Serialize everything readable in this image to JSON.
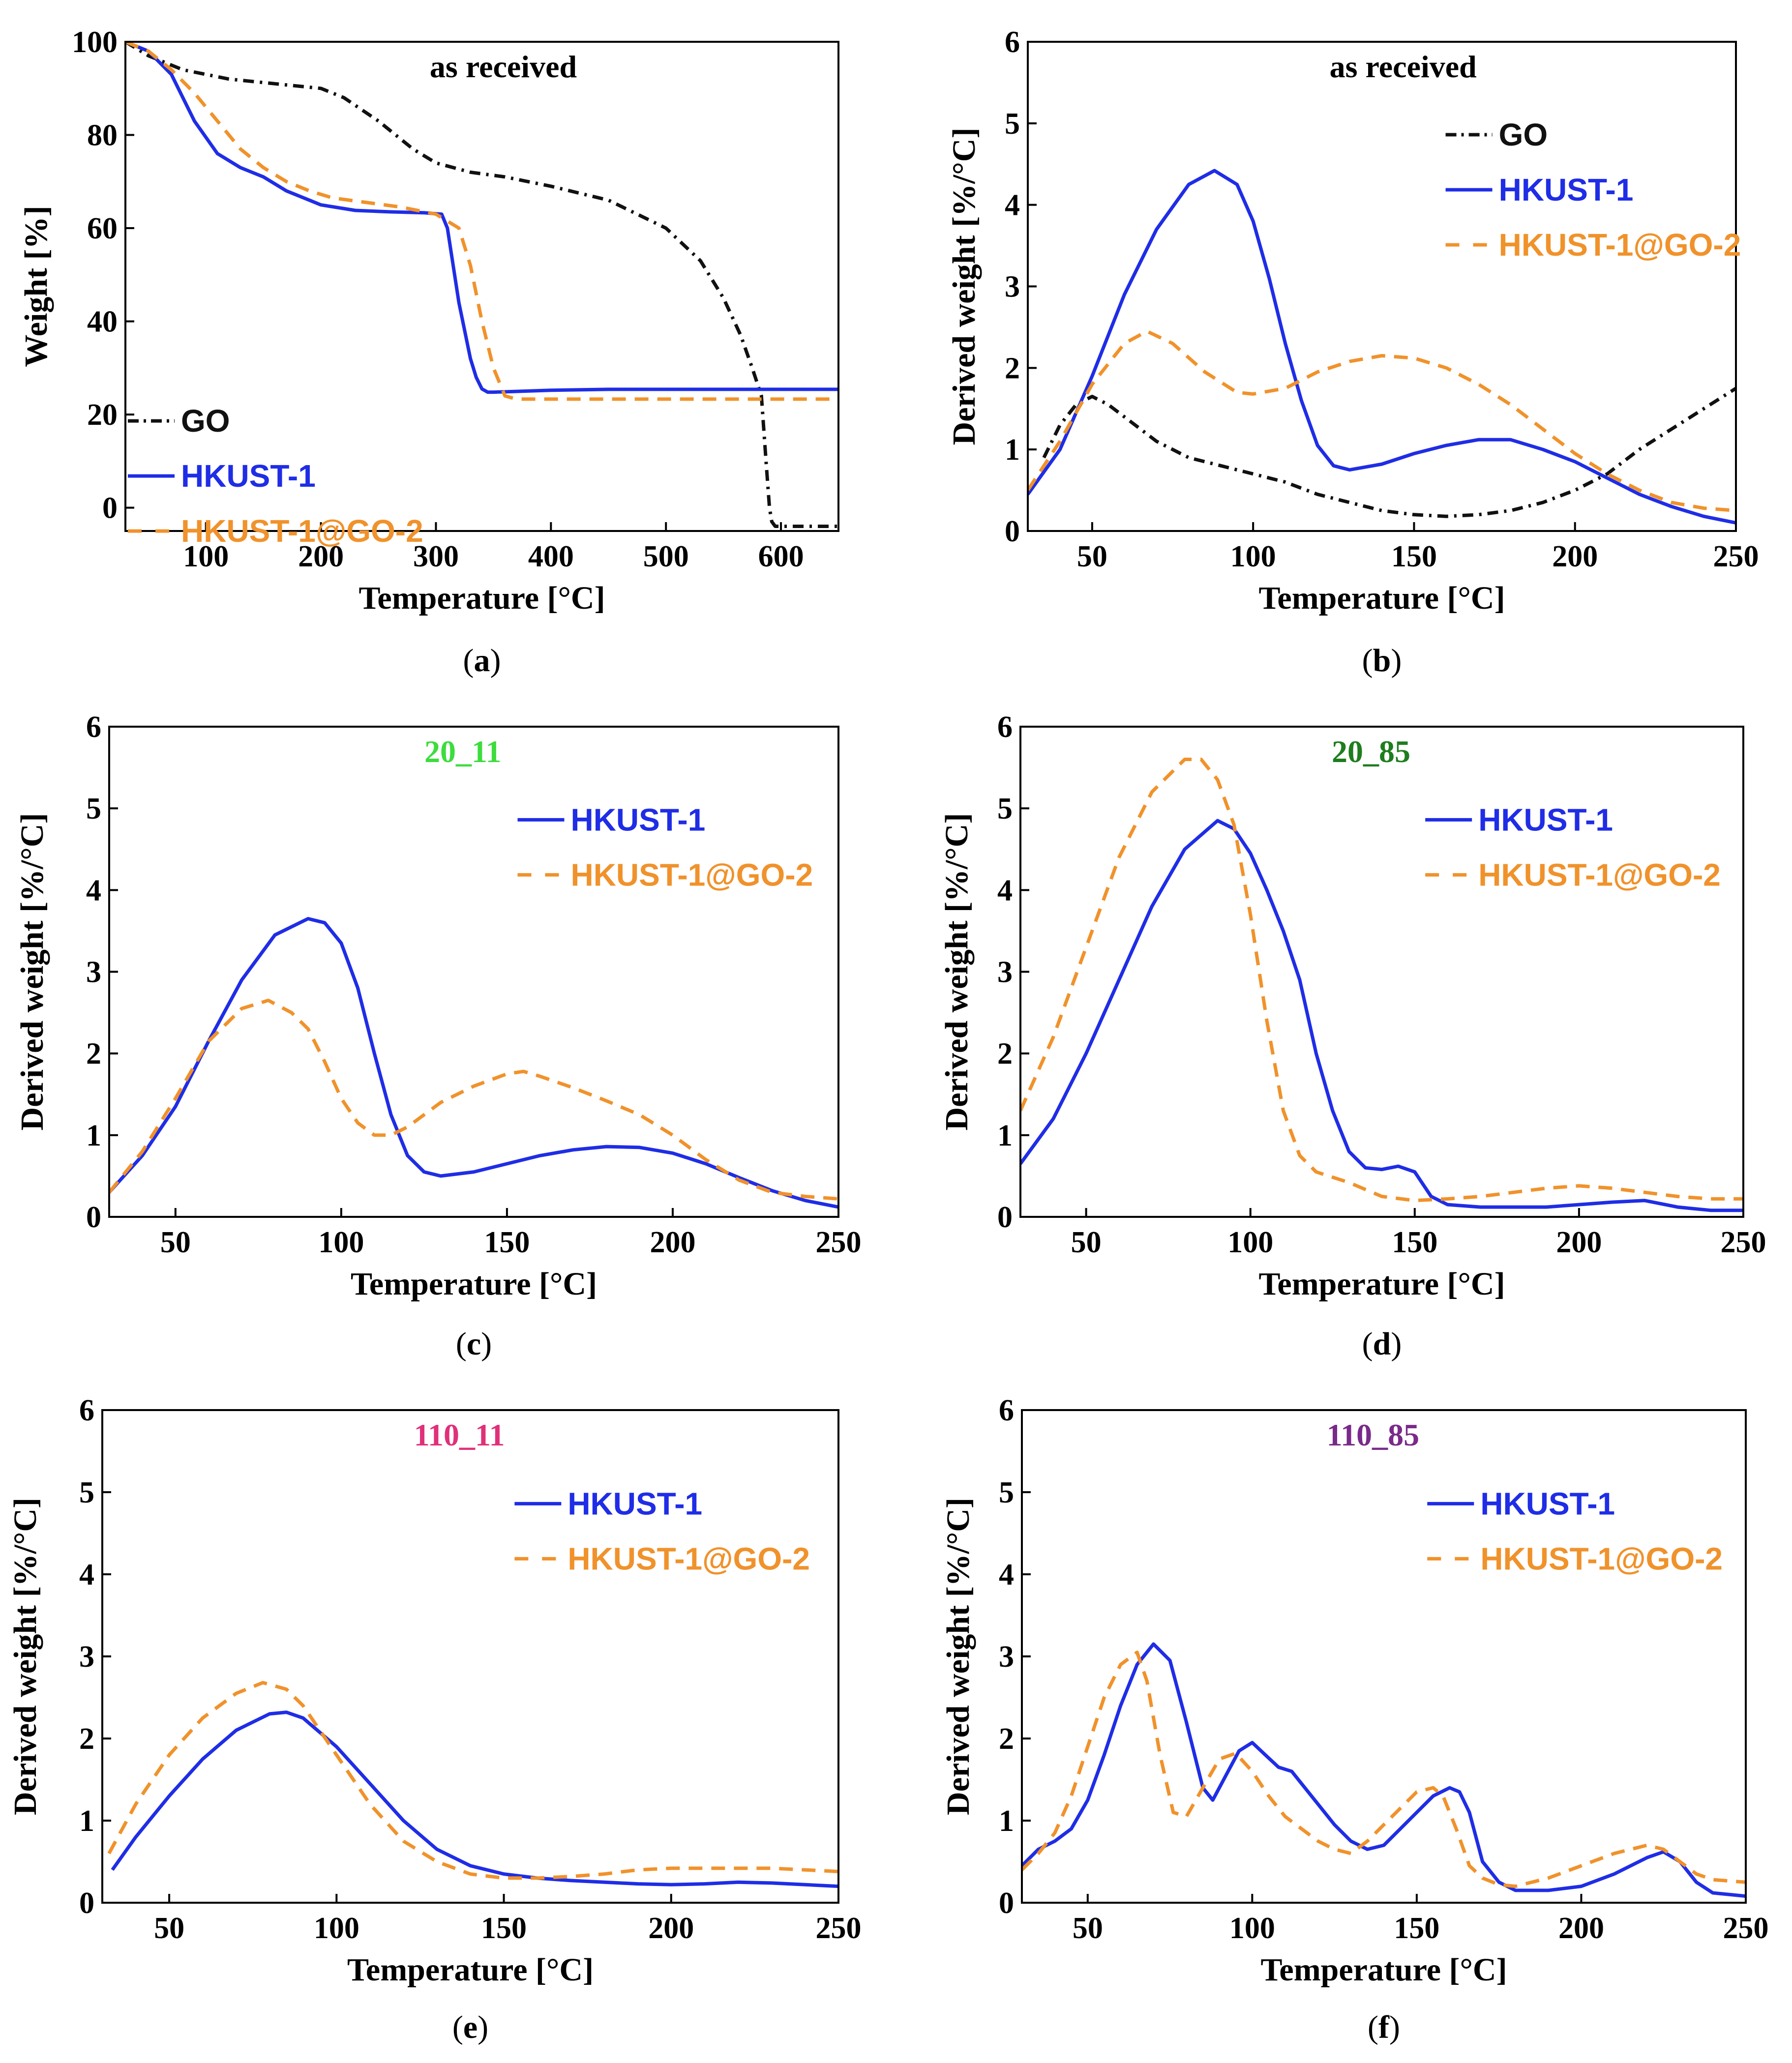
{
  "colors": {
    "GO": "#111111",
    "HKUST-1": "#1f2de6",
    "HKUST-1@GO-2": "#f0922b",
    "axis": "#000000"
  },
  "chart_data": [
    {
      "id": "a",
      "panel_label": "a",
      "type": "line",
      "title": "as received",
      "title_color": "#000000",
      "xlabel": "Temperature [°C]",
      "ylabel": "Weight [%]",
      "xlim": [
        30,
        650
      ],
      "ylim": [
        -5,
        100
      ],
      "xticks": [
        100,
        200,
        300,
        400,
        500,
        600
      ],
      "yticks": [
        0,
        20,
        40,
        60,
        80,
        100
      ],
      "legend_position": "left",
      "series": [
        {
          "name": "GO",
          "style": "dashdot",
          "color": "#111111",
          "x": [
            30,
            50,
            80,
            120,
            160,
            200,
            220,
            250,
            280,
            300,
            330,
            360,
            400,
            450,
            500,
            530,
            550,
            565,
            575,
            583,
            587,
            590,
            592,
            595,
            600,
            620,
            650
          ],
          "y": [
            100,
            97,
            94,
            92,
            91,
            90,
            88,
            83,
            77,
            74,
            72,
            71,
            69,
            66,
            60,
            53,
            45,
            37,
            30,
            24,
            10,
            0,
            -3,
            -4,
            -4,
            -4,
            -4
          ]
        },
        {
          "name": "HKUST-1",
          "style": "solid",
          "color": "#1f2de6",
          "x": [
            30,
            50,
            70,
            90,
            110,
            130,
            150,
            170,
            200,
            230,
            260,
            290,
            305,
            310,
            315,
            320,
            325,
            330,
            335,
            340,
            345,
            350,
            400,
            450,
            500,
            550,
            600,
            650
          ],
          "y": [
            100,
            98,
            93,
            83,
            76,
            73,
            71,
            68,
            65,
            63.8,
            63.5,
            63.3,
            63,
            60,
            52,
            44,
            38,
            32,
            28,
            25.5,
            24.8,
            24.8,
            25.2,
            25.4,
            25.4,
            25.4,
            25.4,
            25.4
          ]
        },
        {
          "name": "HKUST-1@GO-2",
          "style": "dashed",
          "color": "#f0922b",
          "x": [
            30,
            50,
            70,
            90,
            110,
            130,
            150,
            170,
            190,
            210,
            240,
            270,
            300,
            320,
            330,
            340,
            350,
            360,
            370,
            400,
            450,
            500,
            550,
            600,
            650
          ],
          "y": [
            100,
            98,
            94,
            89,
            83,
            77,
            73,
            70,
            68,
            66.5,
            65.5,
            64.5,
            63,
            60,
            52,
            40,
            30,
            24,
            23.3,
            23.3,
            23.3,
            23.3,
            23.3,
            23.3,
            23.3
          ]
        }
      ]
    },
    {
      "id": "b",
      "panel_label": "b",
      "type": "line",
      "title": "as received",
      "title_color": "#000000",
      "xlabel": "Temperature [°C]",
      "ylabel": "Derived weight [%/°C]",
      "xlim": [
        30,
        250
      ],
      "ylim": [
        0,
        6
      ],
      "xticks": [
        50,
        100,
        150,
        200,
        250
      ],
      "yticks": [
        0,
        1,
        2,
        3,
        4,
        5,
        6
      ],
      "legend_position": "upper-right",
      "series": [
        {
          "name": "GO",
          "style": "dashdot",
          "color": "#111111",
          "x": [
            35,
            40,
            45,
            50,
            55,
            60,
            70,
            80,
            90,
            100,
            110,
            120,
            130,
            140,
            150,
            160,
            170,
            180,
            190,
            200,
            210,
            220,
            230,
            240,
            250
          ],
          "y": [
            0.9,
            1.3,
            1.55,
            1.65,
            1.55,
            1.4,
            1.1,
            0.9,
            0.8,
            0.7,
            0.6,
            0.45,
            0.35,
            0.25,
            0.2,
            0.18,
            0.2,
            0.25,
            0.35,
            0.5,
            0.7,
            1.0,
            1.25,
            1.5,
            1.75
          ]
        },
        {
          "name": "HKUST-1",
          "style": "solid",
          "color": "#1f2de6",
          "x": [
            30,
            40,
            50,
            60,
            70,
            80,
            88,
            95,
            100,
            105,
            110,
            115,
            120,
            125,
            130,
            140,
            150,
            160,
            170,
            180,
            190,
            200,
            210,
            220,
            230,
            240,
            250
          ],
          "y": [
            0.45,
            1.0,
            1.9,
            2.9,
            3.7,
            4.25,
            4.42,
            4.25,
            3.8,
            3.1,
            2.3,
            1.6,
            1.05,
            0.8,
            0.75,
            0.82,
            0.95,
            1.05,
            1.12,
            1.12,
            1.0,
            0.85,
            0.65,
            0.45,
            0.3,
            0.18,
            0.1
          ]
        },
        {
          "name": "HKUST-1@GO-2",
          "style": "dashed",
          "color": "#f0922b",
          "x": [
            30,
            40,
            50,
            60,
            67,
            75,
            85,
            95,
            100,
            110,
            120,
            130,
            140,
            150,
            160,
            170,
            180,
            190,
            200,
            210,
            220,
            230,
            240,
            250
          ],
          "y": [
            0.5,
            1.1,
            1.8,
            2.3,
            2.45,
            2.3,
            1.95,
            1.7,
            1.68,
            1.75,
            1.95,
            2.08,
            2.15,
            2.12,
            2.0,
            1.8,
            1.55,
            1.25,
            0.95,
            0.7,
            0.5,
            0.35,
            0.28,
            0.25
          ]
        }
      ]
    },
    {
      "id": "c",
      "panel_label": "c",
      "type": "line",
      "title": "20_11",
      "title_color": "#3ddc3d",
      "xlabel": "Temperature [°C]",
      "ylabel": "Derived weight [%/°C]",
      "xlim": [
        30,
        250
      ],
      "ylim": [
        0,
        6
      ],
      "xticks": [
        50,
        100,
        150,
        200,
        250
      ],
      "yticks": [
        0,
        1,
        2,
        3,
        4,
        5,
        6
      ],
      "legend_position": "upper-right",
      "series": [
        {
          "name": "HKUST-1",
          "style": "solid",
          "color": "#1f2de6",
          "x": [
            30,
            40,
            50,
            60,
            70,
            80,
            90,
            95,
            100,
            105,
            110,
            115,
            120,
            125,
            130,
            140,
            150,
            160,
            170,
            180,
            190,
            200,
            210,
            220,
            230,
            240,
            250
          ],
          "y": [
            0.3,
            0.75,
            1.35,
            2.15,
            2.9,
            3.45,
            3.65,
            3.6,
            3.35,
            2.8,
            2.0,
            1.25,
            0.75,
            0.55,
            0.5,
            0.55,
            0.65,
            0.75,
            0.82,
            0.86,
            0.85,
            0.78,
            0.65,
            0.48,
            0.32,
            0.2,
            0.12
          ]
        },
        {
          "name": "HKUST-1@GO-2",
          "style": "dashed",
          "color": "#f0922b",
          "x": [
            30,
            40,
            50,
            60,
            70,
            78,
            85,
            90,
            95,
            100,
            105,
            110,
            115,
            120,
            130,
            140,
            150,
            155,
            160,
            170,
            180,
            190,
            200,
            210,
            220,
            230,
            240,
            250
          ],
          "y": [
            0.3,
            0.8,
            1.45,
            2.15,
            2.55,
            2.65,
            2.5,
            2.3,
            1.9,
            1.45,
            1.15,
            1.0,
            1.0,
            1.1,
            1.4,
            1.6,
            1.75,
            1.78,
            1.72,
            1.58,
            1.42,
            1.25,
            1.0,
            0.7,
            0.45,
            0.3,
            0.25,
            0.22
          ]
        }
      ]
    },
    {
      "id": "d",
      "panel_label": "d",
      "type": "line",
      "title": "20_85",
      "title_color": "#1e7d1e",
      "xlabel": "Temperature [°C]",
      "ylabel": "Derived weight [%/°C]",
      "xlim": [
        30,
        250
      ],
      "ylim": [
        0,
        6
      ],
      "xticks": [
        50,
        100,
        150,
        200,
        250
      ],
      "yticks": [
        0,
        1,
        2,
        3,
        4,
        5,
        6
      ],
      "legend_position": "upper-right",
      "series": [
        {
          "name": "HKUST-1",
          "style": "solid",
          "color": "#1f2de6",
          "x": [
            30,
            40,
            50,
            60,
            70,
            80,
            90,
            95,
            100,
            105,
            110,
            115,
            120,
            125,
            130,
            135,
            140,
            145,
            150,
            155,
            160,
            170,
            180,
            190,
            200,
            210,
            220,
            230,
            240,
            250
          ],
          "y": [
            0.65,
            1.2,
            2.0,
            2.9,
            3.8,
            4.5,
            4.85,
            4.75,
            4.45,
            4.0,
            3.5,
            2.9,
            2.0,
            1.3,
            0.8,
            0.6,
            0.58,
            0.62,
            0.55,
            0.25,
            0.15,
            0.12,
            0.12,
            0.12,
            0.15,
            0.18,
            0.2,
            0.12,
            0.08,
            0.08
          ]
        },
        {
          "name": "HKUST-1@GO-2",
          "style": "dashed",
          "color": "#f0922b",
          "x": [
            30,
            40,
            50,
            60,
            70,
            80,
            85,
            90,
            95,
            100,
            105,
            110,
            115,
            120,
            130,
            140,
            150,
            160,
            170,
            180,
            190,
            200,
            210,
            220,
            230,
            240,
            250
          ],
          "y": [
            1.3,
            2.2,
            3.3,
            4.4,
            5.2,
            5.6,
            5.6,
            5.35,
            4.8,
            3.7,
            2.4,
            1.3,
            0.75,
            0.55,
            0.42,
            0.25,
            0.2,
            0.22,
            0.25,
            0.3,
            0.35,
            0.38,
            0.35,
            0.3,
            0.25,
            0.22,
            0.22
          ]
        }
      ]
    },
    {
      "id": "e",
      "panel_label": "e",
      "type": "line",
      "title": "110_11",
      "title_color": "#e0307a",
      "xlabel": "Temperature [°C]",
      "ylabel": "Derived weight [%/°C]",
      "xlim": [
        30,
        250
      ],
      "ylim": [
        0,
        6
      ],
      "xticks": [
        50,
        100,
        150,
        200,
        250
      ],
      "yticks": [
        0,
        1,
        2,
        3,
        4,
        5,
        6
      ],
      "legend_position": "upper-right",
      "series": [
        {
          "name": "HKUST-1",
          "style": "solid",
          "color": "#1f2de6",
          "x": [
            33,
            40,
            50,
            60,
            70,
            80,
            85,
            90,
            100,
            110,
            120,
            130,
            140,
            150,
            160,
            170,
            180,
            190,
            200,
            210,
            220,
            230,
            240,
            250
          ],
          "y": [
            0.4,
            0.8,
            1.3,
            1.75,
            2.1,
            2.3,
            2.32,
            2.25,
            1.9,
            1.45,
            1.0,
            0.65,
            0.45,
            0.35,
            0.3,
            0.27,
            0.25,
            0.23,
            0.22,
            0.23,
            0.25,
            0.24,
            0.22,
            0.2
          ]
        },
        {
          "name": "HKUST-1@GO-2",
          "style": "dashed",
          "color": "#f0922b",
          "x": [
            32,
            40,
            50,
            60,
            70,
            78,
            85,
            90,
            100,
            110,
            120,
            130,
            140,
            150,
            160,
            170,
            180,
            190,
            200,
            210,
            220,
            230,
            240,
            250
          ],
          "y": [
            0.6,
            1.2,
            1.8,
            2.25,
            2.55,
            2.68,
            2.6,
            2.4,
            1.8,
            1.2,
            0.75,
            0.5,
            0.35,
            0.3,
            0.3,
            0.32,
            0.35,
            0.4,
            0.42,
            0.42,
            0.42,
            0.42,
            0.4,
            0.38
          ]
        }
      ]
    },
    {
      "id": "f",
      "panel_label": "f",
      "type": "line",
      "title": "110_85",
      "title_color": "#7a2a8a",
      "xlabel": "Temperature [°C]",
      "ylabel": "Derived weight [%/°C]",
      "xlim": [
        30,
        250
      ],
      "ylim": [
        0,
        6
      ],
      "xticks": [
        50,
        100,
        150,
        200,
        250
      ],
      "yticks": [
        0,
        1,
        2,
        3,
        4,
        5,
        6
      ],
      "legend_position": "upper-right",
      "series": [
        {
          "name": "HKUST-1",
          "style": "solid",
          "color": "#1f2de6",
          "x": [
            30,
            35,
            40,
            45,
            50,
            55,
            60,
            65,
            70,
            75,
            80,
            85,
            88,
            92,
            96,
            100,
            104,
            108,
            112,
            116,
            120,
            125,
            130,
            135,
            140,
            145,
            150,
            155,
            160,
            163,
            166,
            170,
            175,
            180,
            190,
            200,
            210,
            220,
            225,
            230,
            235,
            240,
            250
          ],
          "y": [
            0.45,
            0.65,
            0.75,
            0.9,
            1.25,
            1.8,
            2.4,
            2.9,
            3.15,
            2.95,
            2.2,
            1.4,
            1.25,
            1.55,
            1.85,
            1.95,
            1.8,
            1.65,
            1.6,
            1.4,
            1.2,
            0.95,
            0.75,
            0.65,
            0.7,
            0.9,
            1.1,
            1.3,
            1.4,
            1.35,
            1.1,
            0.5,
            0.25,
            0.15,
            0.15,
            0.2,
            0.35,
            0.55,
            0.62,
            0.5,
            0.25,
            0.12,
            0.08
          ]
        },
        {
          "name": "HKUST-1@GO-2",
          "style": "dashed",
          "color": "#f0922b",
          "x": [
            30,
            35,
            40,
            45,
            50,
            55,
            60,
            65,
            68,
            72,
            76,
            80,
            85,
            90,
            95,
            100,
            105,
            110,
            115,
            120,
            125,
            130,
            135,
            140,
            145,
            150,
            155,
            158,
            162,
            166,
            170,
            175,
            180,
            190,
            200,
            210,
            220,
            225,
            230,
            235,
            240,
            250
          ],
          "y": [
            0.4,
            0.6,
            0.85,
            1.3,
            1.9,
            2.5,
            2.9,
            3.05,
            2.7,
            1.8,
            1.1,
            1.05,
            1.4,
            1.75,
            1.82,
            1.6,
            1.3,
            1.05,
            0.9,
            0.75,
            0.65,
            0.6,
            0.75,
            0.95,
            1.15,
            1.35,
            1.4,
            1.3,
            0.9,
            0.45,
            0.3,
            0.22,
            0.2,
            0.3,
            0.45,
            0.6,
            0.7,
            0.65,
            0.5,
            0.35,
            0.28,
            0.25
          ]
        }
      ]
    }
  ]
}
